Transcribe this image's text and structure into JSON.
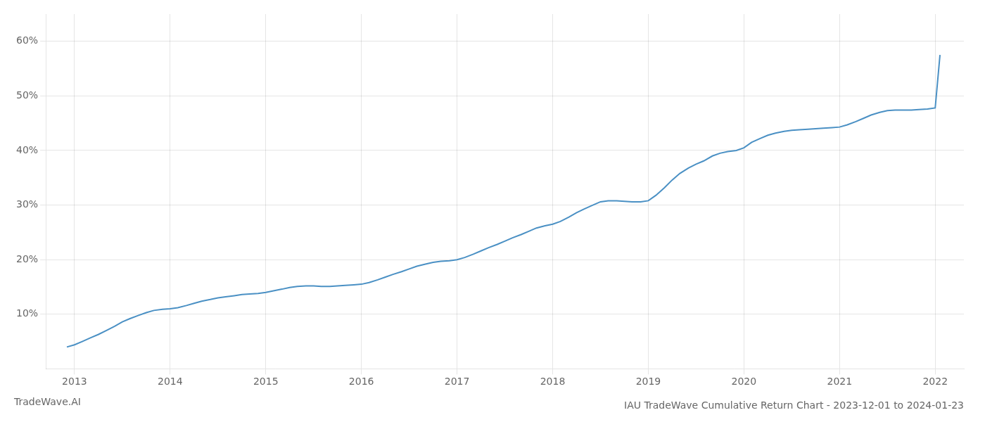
{
  "chart_data": {
    "type": "line",
    "title": "IAU TradeWave Cumulative Return Chart - 2023-12-01 to 2024-01-23",
    "annotations": [
      "TradeWave.AI"
    ],
    "color": "#4a90c4",
    "grid": true,
    "x": [
      2012.92,
      2013.0,
      2013.08,
      2013.17,
      2013.25,
      2013.33,
      2013.42,
      2013.5,
      2013.58,
      2013.67,
      2013.75,
      2013.83,
      2013.92,
      2014.0,
      2014.08,
      2014.17,
      2014.25,
      2014.33,
      2014.42,
      2014.5,
      2014.58,
      2014.67,
      2014.75,
      2014.83,
      2014.92,
      2015.0,
      2015.08,
      2015.17,
      2015.25,
      2015.33,
      2015.42,
      2015.5,
      2015.58,
      2015.67,
      2015.75,
      2015.83,
      2015.92,
      2016.0,
      2016.08,
      2016.17,
      2016.25,
      2016.33,
      2016.42,
      2016.5,
      2016.58,
      2016.67,
      2016.75,
      2016.83,
      2016.92,
      2017.0,
      2017.08,
      2017.17,
      2017.25,
      2017.33,
      2017.42,
      2017.5,
      2017.58,
      2017.67,
      2017.75,
      2017.83,
      2017.92,
      2018.0,
      2018.08,
      2018.17,
      2018.25,
      2018.33,
      2018.42,
      2018.5,
      2018.58,
      2018.67,
      2018.75,
      2018.83,
      2018.92,
      2019.0,
      2019.08,
      2019.17,
      2019.25,
      2019.33,
      2019.42,
      2019.5,
      2019.58,
      2019.67,
      2019.75,
      2019.83,
      2019.92,
      2020.0,
      2020.08,
      2020.17,
      2020.25,
      2020.33,
      2020.42,
      2020.5,
      2020.58,
      2020.67,
      2020.75,
      2020.83,
      2020.92,
      2021.0,
      2021.08,
      2021.17,
      2021.25,
      2021.33,
      2021.42,
      2021.5,
      2021.58,
      2021.67,
      2021.75,
      2021.83,
      2021.92,
      2022.0,
      2022.05
    ],
    "values": [
      0.04,
      0.044,
      0.05,
      0.057,
      0.063,
      0.07,
      0.078,
      0.086,
      0.092,
      0.098,
      0.103,
      0.107,
      0.109,
      0.11,
      0.112,
      0.116,
      0.12,
      0.124,
      0.127,
      0.13,
      0.132,
      0.134,
      0.136,
      0.137,
      0.138,
      0.14,
      0.143,
      0.146,
      0.149,
      0.151,
      0.152,
      0.152,
      0.151,
      0.151,
      0.152,
      0.153,
      0.154,
      0.155,
      0.158,
      0.163,
      0.168,
      0.173,
      0.178,
      0.183,
      0.188,
      0.192,
      0.195,
      0.197,
      0.198,
      0.2,
      0.204,
      0.21,
      0.216,
      0.222,
      0.228,
      0.234,
      0.24,
      0.246,
      0.252,
      0.258,
      0.262,
      0.265,
      0.27,
      0.278,
      0.286,
      0.293,
      0.3,
      0.306,
      0.308,
      0.308,
      0.307,
      0.306,
      0.306,
      0.308,
      0.318,
      0.332,
      0.346,
      0.358,
      0.368,
      0.375,
      0.381,
      0.39,
      0.395,
      0.398,
      0.4,
      0.405,
      0.415,
      0.422,
      0.428,
      0.432,
      0.435,
      0.437,
      0.438,
      0.439,
      0.44,
      0.441,
      0.442,
      0.443,
      0.447,
      0.453,
      0.459,
      0.465,
      0.47,
      0.473,
      0.474,
      0.474,
      0.474,
      0.475,
      0.476,
      0.478,
      0.575
    ],
    "xlim": [
      2012.7,
      2022.3
    ],
    "xticks": [
      2013,
      2014,
      2015,
      2016,
      2017,
      2018,
      2019,
      2020,
      2021,
      2022
    ],
    "ylim": [
      0.0,
      0.65
    ],
    "yticks": [
      {
        "value": 0.1,
        "label": "10%"
      },
      {
        "value": 0.2,
        "label": "20%"
      },
      {
        "value": 0.3,
        "label": "30%"
      },
      {
        "value": 0.4,
        "label": "40%"
      },
      {
        "value": 0.5,
        "label": "50%"
      },
      {
        "value": 0.6,
        "label": "60%"
      }
    ]
  }
}
